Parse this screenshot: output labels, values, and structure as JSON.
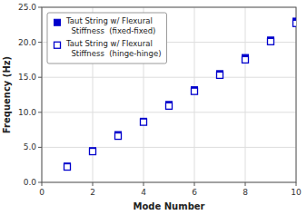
{
  "chart_data": {
    "type": "scatter",
    "xlabel": "Mode Number",
    "ylabel": "Frequency (Hz)",
    "x": [
      1,
      2,
      3,
      4,
      5,
      6,
      7,
      8,
      9,
      10
    ],
    "series": [
      {
        "name": "Taut String w/ Flexural\n  Stiffness  (fixed-fixed)",
        "color": "#0000CC",
        "marker": "square",
        "values": [
          2.3,
          4.5,
          6.8,
          8.7,
          11.1,
          13.2,
          15.5,
          17.8,
          20.3,
          23.0
        ]
      },
      {
        "name": "Taut String w/ Flexural\n  Stiffness  (hinge-hinge)",
        "color": "#0000CC",
        "marker": "open-square",
        "values": [
          2.2,
          4.4,
          6.6,
          8.6,
          10.9,
          13.0,
          15.3,
          17.5,
          20.1,
          22.7
        ]
      }
    ],
    "xlim": [
      0,
      10
    ],
    "ylim": [
      0,
      25
    ],
    "xticks": [
      0,
      2,
      4,
      6,
      8,
      10
    ],
    "yticks": [
      {
        "value": 0,
        "label": "0.0"
      },
      {
        "value": 5,
        "label": "5.0"
      },
      {
        "value": 10,
        "label": "10.0"
      },
      {
        "value": 15,
        "label": "15.0"
      },
      {
        "value": 20,
        "label": "20.0"
      },
      {
        "value": 25,
        "label": "25.0"
      }
    ],
    "grid": true,
    "legend": "upper-left"
  }
}
